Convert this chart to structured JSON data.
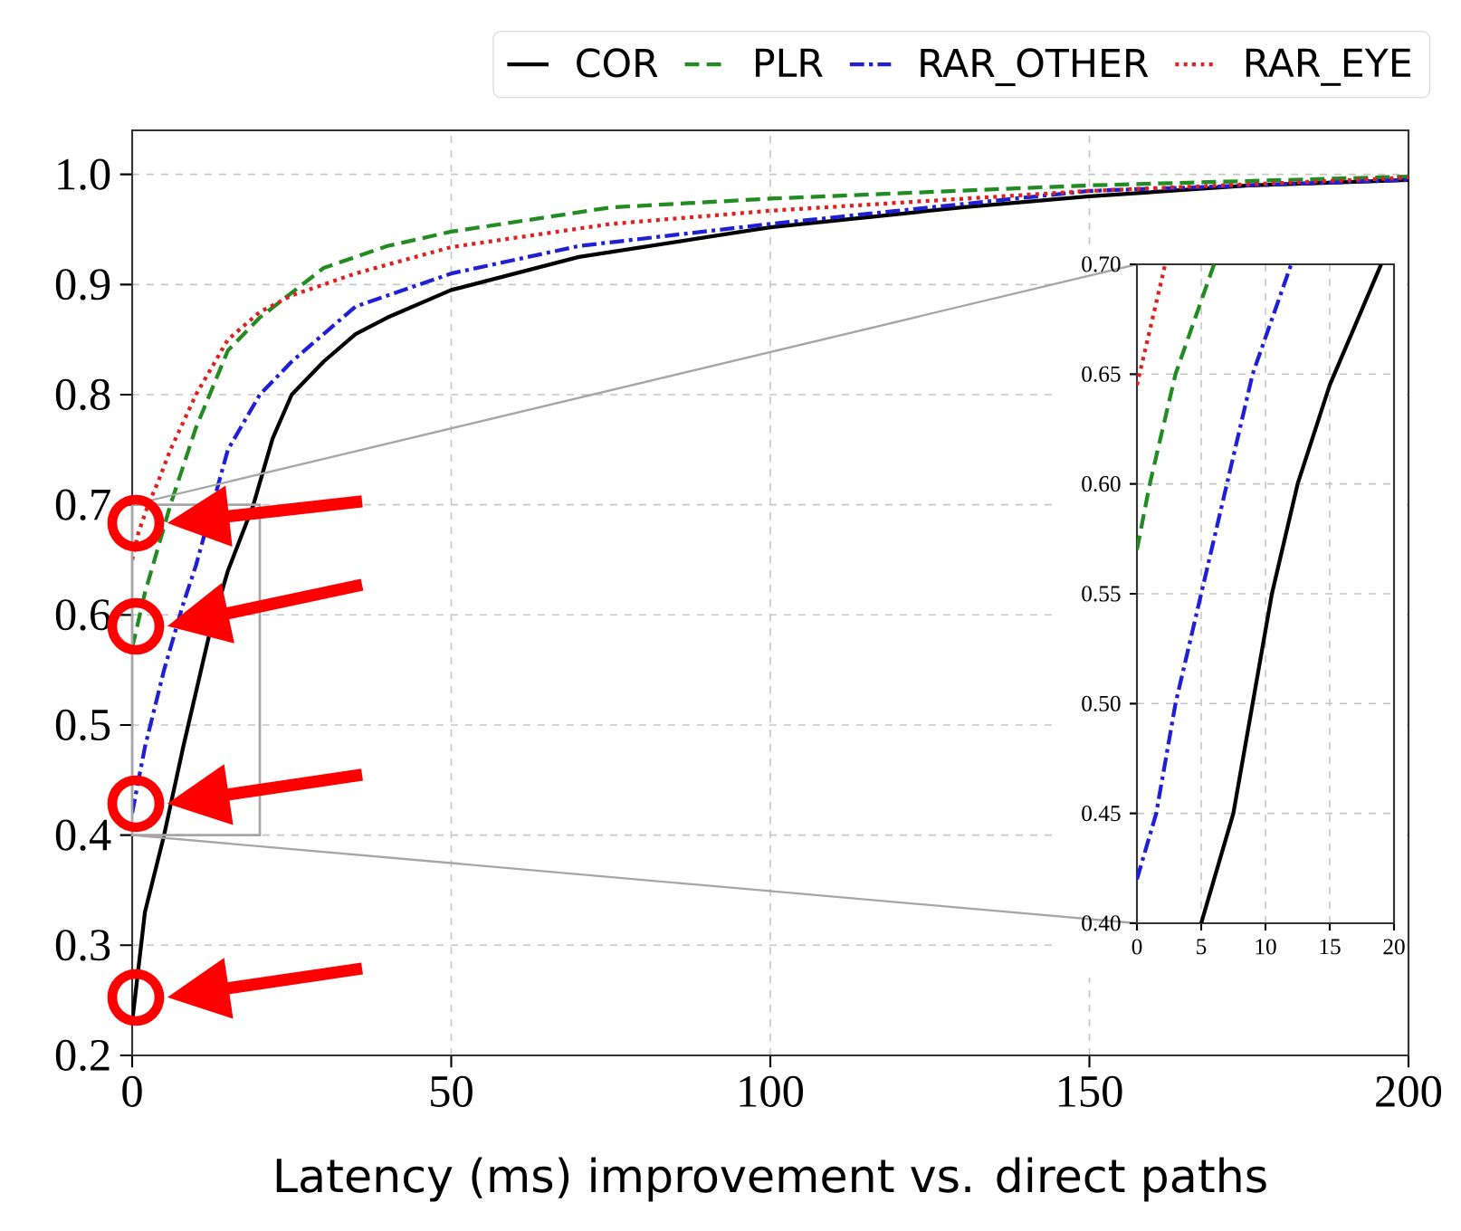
{
  "chart_data": [
    {
      "type": "line",
      "xlabel": "Latency (ms) improvement vs. direct paths",
      "xlim": [
        0,
        200
      ],
      "ylim": [
        0.2,
        1.04
      ],
      "xticks": [
        0,
        50,
        100,
        150,
        200
      ],
      "yticks": [
        0.2,
        0.3,
        0.4,
        0.5,
        0.6,
        0.7,
        0.8,
        0.9,
        {
          "value": 1.0,
          "label": "1.0"
        }
      ],
      "grid": true,
      "legend": "top",
      "series": [
        {
          "name": "COR",
          "color": "#000000",
          "line_style": "solid",
          "x": [
            0,
            2,
            5,
            8,
            10,
            12,
            15,
            19,
            22,
            25,
            30,
            35,
            40,
            50,
            70,
            100,
            130,
            150,
            175,
            200
          ],
          "values": [
            0.23,
            0.33,
            0.4,
            0.48,
            0.53,
            0.58,
            0.64,
            0.7,
            0.76,
            0.8,
            0.83,
            0.855,
            0.87,
            0.895,
            0.925,
            0.952,
            0.97,
            0.98,
            0.99,
            0.995
          ]
        },
        {
          "name": "PLR",
          "color": "#228b22",
          "line_style": "dashed",
          "x": [
            0,
            2,
            4,
            6,
            10,
            15,
            20,
            30,
            40,
            50,
            75,
            100,
            150,
            200
          ],
          "values": [
            0.57,
            0.62,
            0.66,
            0.7,
            0.77,
            0.84,
            0.87,
            0.915,
            0.935,
            0.948,
            0.97,
            0.978,
            0.99,
            0.998
          ]
        },
        {
          "name": "RAR_OTHER",
          "color": "#1f1fd6",
          "line_style": "dashdot",
          "x": [
            0,
            2,
            5,
            8,
            10,
            12,
            15,
            20,
            25,
            35,
            50,
            70,
            100,
            150,
            200
          ],
          "values": [
            0.42,
            0.48,
            0.55,
            0.61,
            0.645,
            null,
            0.75,
            0.8,
            0.83,
            0.88,
            0.91,
            0.935,
            0.955,
            0.985,
            0.995
          ]
        },
        {
          "name": "RAR_EYE",
          "color": "#e01f1f",
          "line_style": "dotted",
          "x": [
            0,
            1,
            2.5,
            4,
            6,
            10,
            15,
            20,
            25,
            35,
            50,
            75,
            100,
            150,
            200
          ],
          "values": [
            0.65,
            0.675,
            0.7,
            0.72,
            0.75,
            0.8,
            0.85,
            0.875,
            0.89,
            0.91,
            0.934,
            0.955,
            0.967,
            0.985,
            0.997
          ]
        }
      ]
    },
    {
      "type": "line",
      "xlim": [
        0,
        20
      ],
      "ylim": [
        0.4,
        0.7
      ],
      "xticks": [
        0,
        5,
        10,
        15,
        20
      ],
      "yticks": [
        {
          "value": 0.4,
          "label": "0.40"
        },
        {
          "value": 0.45,
          "label": "0.45"
        },
        {
          "value": 0.5,
          "label": "0.50"
        },
        {
          "value": 0.55,
          "label": "0.55"
        },
        {
          "value": 0.6,
          "label": "0.60"
        },
        {
          "value": 0.65,
          "label": "0.65"
        },
        {
          "value": 0.7,
          "label": "0.70"
        }
      ],
      "grid": true,
      "series": [
        {
          "color": "#000000",
          "line_style": "solid",
          "x": [
            5,
            7.5,
            9,
            10.5,
            12.5,
            15,
            19
          ],
          "values": [
            0.4,
            0.45,
            0.5,
            0.55,
            0.6,
            0.645,
            0.7
          ]
        },
        {
          "color": "#228b22",
          "line_style": "dashed",
          "x": [
            0,
            1,
            3,
            6
          ],
          "values": [
            0.57,
            0.6,
            0.65,
            0.7
          ]
        },
        {
          "color": "#1f1fd6",
          "line_style": "dashdot",
          "x": [
            0,
            1.5,
            3,
            5,
            7,
            9,
            12
          ],
          "values": [
            0.42,
            0.45,
            0.5,
            0.55,
            0.6,
            0.65,
            0.7
          ]
        },
        {
          "color": "#e01f1f",
          "line_style": "dotted",
          "x": [
            0,
            1,
            2.2
          ],
          "values": [
            0.645,
            0.67,
            0.7
          ]
        }
      ]
    }
  ]
}
